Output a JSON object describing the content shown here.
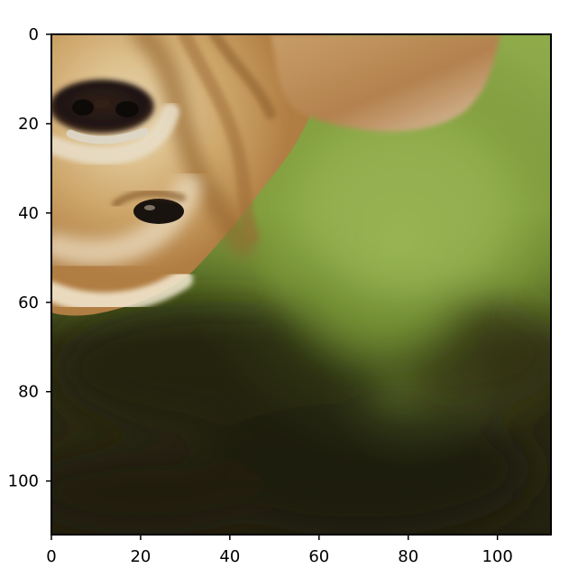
{
  "image": {
    "subject": "upside-down dog face with blurred green foliage background",
    "colors": {
      "fur_light": "#f1dfb9",
      "fur_mid": "#d9b37b",
      "fur_dark": "#9f6f33",
      "eye": "#221913",
      "background_green": "#93b548",
      "background_dark": "#2a2410",
      "frame": "#000000"
    }
  },
  "axes": {
    "x": {
      "ticks": [
        {
          "value": 0,
          "label": "0"
        },
        {
          "value": 20,
          "label": "20"
        },
        {
          "value": 40,
          "label": "40"
        },
        {
          "value": 60,
          "label": "60"
        },
        {
          "value": 80,
          "label": "80"
        },
        {
          "value": 100,
          "label": "100"
        }
      ],
      "range": [
        0,
        112
      ]
    },
    "y": {
      "ticks": [
        {
          "value": 0,
          "label": "0"
        },
        {
          "value": 20,
          "label": "20"
        },
        {
          "value": 40,
          "label": "40"
        },
        {
          "value": 60,
          "label": "60"
        },
        {
          "value": 80,
          "label": "80"
        },
        {
          "value": 100,
          "label": "100"
        }
      ],
      "range": [
        0,
        112
      ],
      "inverted": true
    }
  }
}
